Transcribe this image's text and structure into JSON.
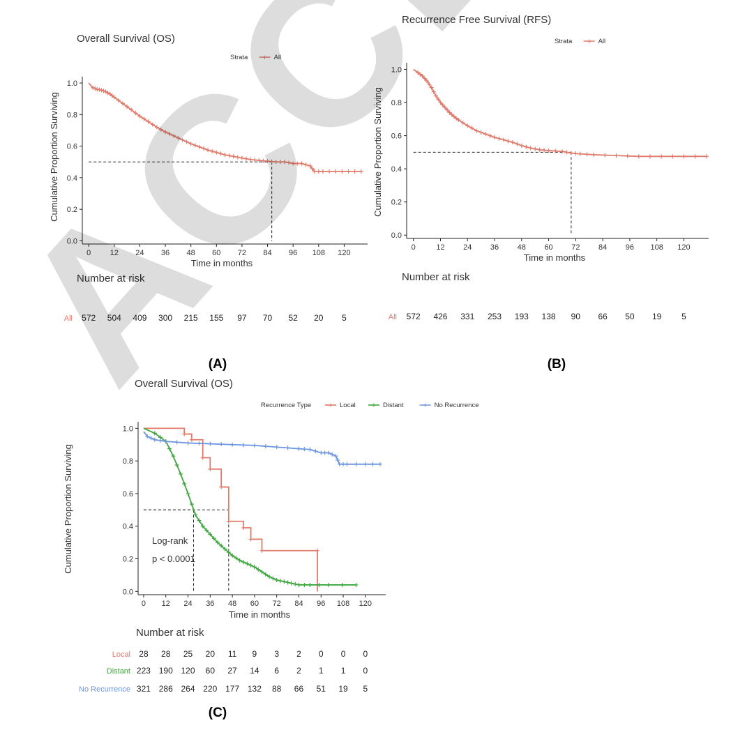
{
  "watermark": "ACCEPTED",
  "chart_data": [
    {
      "id": "A",
      "type": "line",
      "panel_label": "(A)",
      "title": "Overall Survival (OS)",
      "legend": {
        "title": "Strata",
        "entries": [
          {
            "name": "All",
            "color": "#e07a6b"
          }
        ],
        "position": "top"
      },
      "xlabel": "Time in months",
      "ylabel": "Cumulative Proportion Surviving",
      "xticks": [
        0,
        12,
        24,
        36,
        48,
        60,
        72,
        84,
        96,
        108,
        120
      ],
      "yticks": [
        0.0,
        0.2,
        0.4,
        0.6,
        0.8,
        1.0
      ],
      "xlim": [
        -3,
        131
      ],
      "ylim": [
        -0.02,
        1.04
      ],
      "series": [
        {
          "name": "All",
          "color": "#e07a6b",
          "x": [
            0,
            2,
            4,
            6,
            8,
            10,
            12,
            16,
            20,
            24,
            28,
            32,
            36,
            40,
            44,
            48,
            52,
            56,
            60,
            64,
            68,
            72,
            76,
            80,
            84,
            88,
            92,
            96,
            100,
            104,
            106,
            110,
            116,
            122,
            128
          ],
          "y": [
            1.0,
            0.97,
            0.96,
            0.955,
            0.945,
            0.93,
            0.91,
            0.87,
            0.83,
            0.79,
            0.755,
            0.72,
            0.69,
            0.665,
            0.64,
            0.615,
            0.595,
            0.575,
            0.56,
            0.545,
            0.535,
            0.525,
            0.515,
            0.51,
            0.505,
            0.5,
            0.5,
            0.49,
            0.49,
            0.475,
            0.44,
            0.44,
            0.44,
            0.44,
            0.44
          ]
        }
      ],
      "median_x": 86,
      "median_y": 0.5,
      "risk_table": {
        "title": "Number at risk",
        "rows": [
          {
            "label": "All",
            "color": "#e07a6b",
            "values": [
              "572",
              "504",
              "409",
              "300",
              "215",
              "155",
              "97",
              "70",
              "52",
              "20",
              "5"
            ]
          }
        ]
      }
    },
    {
      "id": "B",
      "type": "line",
      "panel_label": "(B)",
      "title": "Recurrence Free Survival (RFS)",
      "legend": {
        "title": "Strata",
        "entries": [
          {
            "name": "All",
            "color": "#e07a6b"
          }
        ],
        "position": "top"
      },
      "xlabel": "Time in months",
      "ylabel": "Cumulative Proportion Surviving",
      "xticks": [
        0,
        12,
        24,
        36,
        48,
        60,
        72,
        84,
        96,
        108,
        120
      ],
      "yticks": [
        0.0,
        0.2,
        0.4,
        0.6,
        0.8,
        1.0
      ],
      "xlim": [
        -3,
        131
      ],
      "ylim": [
        -0.02,
        1.04
      ],
      "series": [
        {
          "name": "All",
          "color": "#e07a6b",
          "x": [
            0,
            2,
            4,
            6,
            8,
            10,
            12,
            14,
            16,
            18,
            20,
            24,
            28,
            32,
            36,
            40,
            44,
            48,
            52,
            56,
            60,
            66,
            70,
            74,
            80,
            90,
            100,
            110,
            120,
            130
          ],
          "y": [
            1.0,
            0.98,
            0.96,
            0.93,
            0.89,
            0.84,
            0.8,
            0.77,
            0.74,
            0.715,
            0.695,
            0.66,
            0.63,
            0.61,
            0.59,
            0.575,
            0.56,
            0.54,
            0.525,
            0.515,
            0.51,
            0.505,
            0.495,
            0.49,
            0.485,
            0.48,
            0.475,
            0.475,
            0.475,
            0.475
          ]
        }
      ],
      "median_x": 70,
      "median_y": 0.5,
      "risk_table": {
        "title": "Number at risk",
        "rows": [
          {
            "label": "All",
            "color": "#e07a6b",
            "values": [
              "572",
              "426",
              "331",
              "253",
              "193",
              "138",
              "90",
              "66",
              "50",
              "19",
              "5"
            ]
          }
        ]
      }
    },
    {
      "id": "C",
      "type": "line",
      "panel_label": "(C)",
      "title": "Overall Survival (OS)",
      "legend": {
        "title": "Recurrence Type",
        "entries": [
          {
            "name": "Local",
            "color": "#e07a6b"
          },
          {
            "name": "Distant",
            "color": "#3fa63f"
          },
          {
            "name": "No Recurrence",
            "color": "#6d96e0"
          }
        ],
        "position": "top"
      },
      "xlabel": "Time in months",
      "ylabel": "Cumulative Proportion Surviving",
      "xticks": [
        0,
        12,
        24,
        36,
        48,
        60,
        72,
        84,
        96,
        108,
        120
      ],
      "yticks": [
        0.0,
        0.2,
        0.4,
        0.6,
        0.8,
        1.0
      ],
      "xlim": [
        -3,
        131
      ],
      "ylim": [
        -0.02,
        1.04
      ],
      "annotation": [
        "Log-rank",
        "p < 0.0001"
      ],
      "series": [
        {
          "name": "Local",
          "color": "#e07a6b",
          "step": true,
          "x": [
            0,
            22,
            26,
            32,
            36,
            42,
            46,
            54,
            58,
            64,
            94,
            94
          ],
          "y": [
            1.0,
            0.965,
            0.93,
            0.82,
            0.75,
            0.64,
            0.43,
            0.39,
            0.32,
            0.25,
            0.25,
            0.0
          ]
        },
        {
          "name": "Distant",
          "color": "#3fa63f",
          "x": [
            0,
            6,
            12,
            16,
            20,
            24,
            28,
            32,
            36,
            40,
            44,
            48,
            52,
            56,
            60,
            64,
            68,
            72,
            76,
            80,
            84,
            90,
            100,
            115
          ],
          "y": [
            1.0,
            0.97,
            0.92,
            0.83,
            0.72,
            0.6,
            0.47,
            0.4,
            0.35,
            0.3,
            0.26,
            0.22,
            0.19,
            0.17,
            0.15,
            0.12,
            0.09,
            0.07,
            0.06,
            0.05,
            0.04,
            0.04,
            0.04,
            0.04
          ]
        },
        {
          "name": "No Recurrence",
          "color": "#6d96e0",
          "x": [
            0,
            2,
            6,
            12,
            24,
            36,
            48,
            60,
            72,
            84,
            90,
            96,
            100,
            104,
            106,
            110,
            120,
            128
          ],
          "y": [
            0.98,
            0.95,
            0.93,
            0.92,
            0.91,
            0.905,
            0.9,
            0.895,
            0.885,
            0.875,
            0.87,
            0.85,
            0.85,
            0.83,
            0.78,
            0.78,
            0.78,
            0.78
          ]
        }
      ],
      "median_lines": [
        {
          "x": 27,
          "y": 0.5
        },
        {
          "x": 46,
          "y": 0.5
        }
      ],
      "risk_table": {
        "title": "Number at risk",
        "rows": [
          {
            "label": "Local",
            "color": "#e07a6b",
            "values": [
              "28",
              "28",
              "25",
              "20",
              "11",
              "9",
              "3",
              "2",
              "0",
              "0",
              "0"
            ]
          },
          {
            "label": "Distant",
            "color": "#3fa63f",
            "values": [
              "223",
              "190",
              "120",
              "60",
              "27",
              "14",
              "6",
              "2",
              "1",
              "1",
              "0"
            ]
          },
          {
            "label": "No Recurrence",
            "color": "#6d96e0",
            "values": [
              "321",
              "286",
              "264",
              "220",
              "177",
              "132",
              "88",
              "66",
              "51",
              "19",
              "5"
            ]
          }
        ]
      }
    }
  ]
}
